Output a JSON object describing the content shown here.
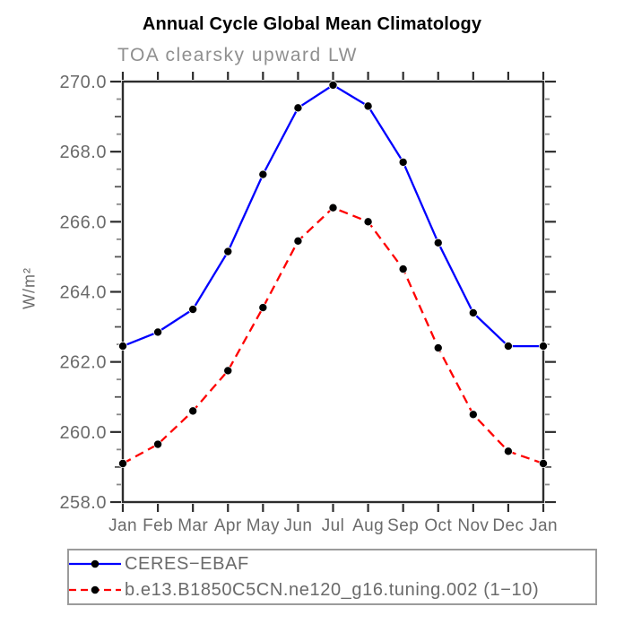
{
  "chart": {
    "title": "Annual Cycle Global Mean Climatology",
    "subtitle": "TOA clearsky upward LW",
    "ylabel": "W/m²"
  },
  "colors": {
    "axis": "#2d2d2d",
    "minor_tick": "#8a8a8a",
    "tick_label": "#6a6a6a",
    "subtitle_text": "#8f8f8f",
    "legend_border": "#9b9b9b",
    "marker": "#000000",
    "series_1": "#0000fe",
    "series_2": "#fe0000"
  },
  "chart_data": {
    "type": "line",
    "title": "Annual Cycle Global Mean Climatology",
    "subtitle": "TOA clearsky upward LW",
    "xlabel": "",
    "ylabel": "W/m²",
    "categories": [
      "Jan",
      "Feb",
      "Mar",
      "Apr",
      "May",
      "Jun",
      "Jul",
      "Aug",
      "Sep",
      "Oct",
      "Nov",
      "Dec",
      "Jan"
    ],
    "ylim": [
      258.0,
      270.0
    ],
    "ytick_interval": 2.0,
    "yminor_interval": 0.5,
    "ytick_labels": [
      "258.0",
      "260.0",
      "262.0",
      "264.0",
      "266.0",
      "268.0",
      "270.0"
    ],
    "grid": false,
    "legend_position": "bottom-left",
    "series": [
      {
        "name": "CERES−EBAF",
        "line_style": "solid",
        "color": "#0000fe",
        "marker": "filled-black-circle",
        "values": [
          262.45,
          262.85,
          263.5,
          265.15,
          267.35,
          269.25,
          269.9,
          269.3,
          267.7,
          265.4,
          263.4,
          262.45,
          262.45
        ]
      },
      {
        "name": "b.e13.B1850C5CN.ne120_g16.tuning.002 (1−10)",
        "line_style": "dashed",
        "color": "#fe0000",
        "marker": "filled-black-circle",
        "values": [
          259.1,
          259.65,
          260.6,
          261.75,
          263.55,
          265.45,
          266.4,
          266.0,
          264.65,
          262.4,
          260.5,
          259.45,
          259.1
        ]
      }
    ]
  }
}
